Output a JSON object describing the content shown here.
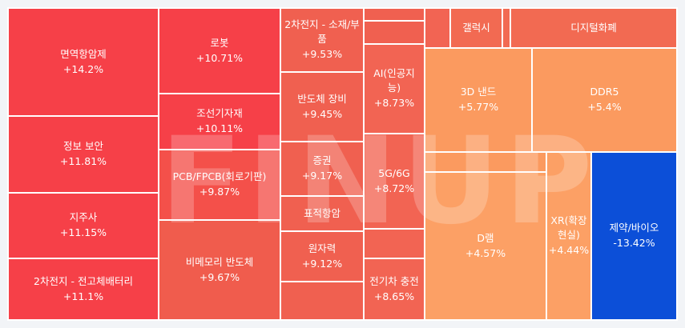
{
  "watermark": "FINUP",
  "tiles": [
    {
      "name": "면역항암제",
      "change": "+14.2%",
      "color": "#f64048"
    },
    {
      "name": "정보 보안",
      "change": "+11.81%",
      "color": "#f64048"
    },
    {
      "name": "지주사",
      "change": "+11.15%",
      "color": "#f64048"
    },
    {
      "name": "2차전지 - 전고체배터리",
      "change": "+11.1%",
      "color": "#f64048"
    },
    {
      "name": "로봇",
      "change": "+10.71%",
      "color": "#f64048"
    },
    {
      "name": "조선기자재",
      "change": "+10.11%",
      "color": "#f64048"
    },
    {
      "name": "PCB/FPCB(회로기판)",
      "change": "+9.87%",
      "color": "#f4504a"
    },
    {
      "name": "비메모리 반도체",
      "change": "+9.67%",
      "color": "#f05c4d"
    },
    {
      "name": "2차전지 - 소재/부품",
      "change": "+9.53%",
      "color": "#f06050"
    },
    {
      "name": "반도체 장비",
      "change": "+9.45%",
      "color": "#f06050"
    },
    {
      "name": "증권",
      "change": "+9.17%",
      "color": "#f06050"
    },
    {
      "name": "표적항암",
      "change": "",
      "color": "#f06050"
    },
    {
      "name": "원자력",
      "change": "+9.12%",
      "color": "#f06050"
    },
    {
      "name": "",
      "change": "",
      "color": "#f06050"
    },
    {
      "name": "",
      "change": "",
      "color": "#f06050"
    },
    {
      "name": "",
      "change": "",
      "color": "#f06050"
    },
    {
      "name": "AI(인공지능)",
      "change": "+8.73%",
      "color": "#f26453"
    },
    {
      "name": "5G/6G",
      "change": "+8.72%",
      "color": "#f26453"
    },
    {
      "name": "",
      "change": "",
      "color": "#f26453"
    },
    {
      "name": "전기차 충전",
      "change": "+8.65%",
      "color": "#f26453"
    },
    {
      "name": "",
      "change": "",
      "color": "#f26453"
    },
    {
      "name": "갤럭시",
      "change": "",
      "color": "#f26a52"
    },
    {
      "name": "",
      "change": "",
      "color": "#f26a52"
    },
    {
      "name": "디지털화폐",
      "change": "",
      "color": "#f26a52"
    },
    {
      "name": "3D 낸드",
      "change": "+5.77%",
      "color": "#fb9a5f"
    },
    {
      "name": "DDR5",
      "change": "+5.4%",
      "color": "#fb9a5f"
    },
    {
      "name": "",
      "change": "",
      "color": "#fb9a5f"
    },
    {
      "name": "D램",
      "change": "+4.57%",
      "color": "#fca065"
    },
    {
      "name": "XR(확장현실)",
      "change": "+4.44%",
      "color": "#fca065"
    },
    {
      "name": "제약/바이오",
      "change": "-13.42%",
      "color": "#0c4fd8"
    }
  ]
}
